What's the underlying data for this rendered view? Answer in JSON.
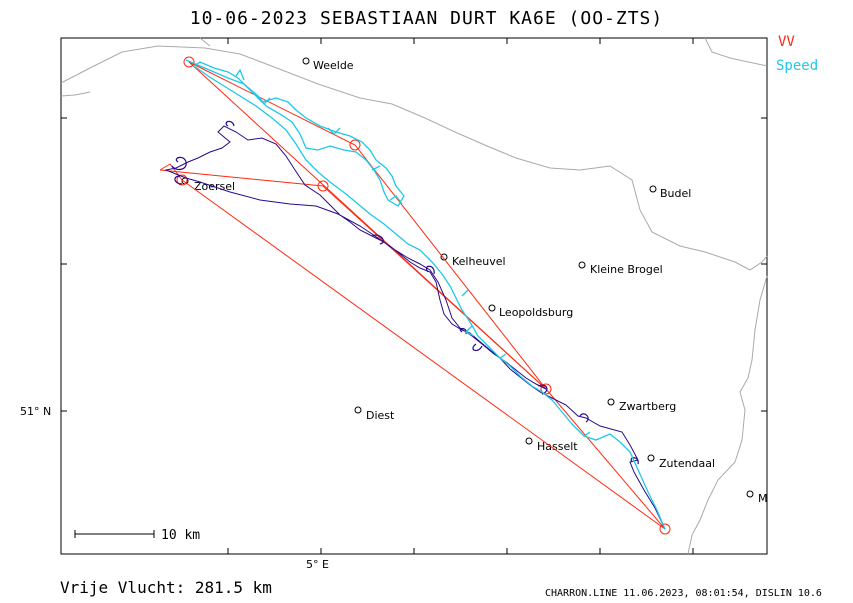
{
  "title": "10-06-2023   SEBASTIAAN DURT   KA6E (OO-ZTS)",
  "legend": {
    "vv": "VV",
    "speed": "Speed"
  },
  "axes": {
    "lat_label": "51° N",
    "lon_label": "5° E"
  },
  "scale": {
    "label": "10 km"
  },
  "places": [
    {
      "name": "Weelde",
      "id": "weelde"
    },
    {
      "name": "Zoersel",
      "id": "zoersel"
    },
    {
      "name": "Budel",
      "id": "budel"
    },
    {
      "name": "Kelheuvel",
      "id": "kelheuvel"
    },
    {
      "name": "Kleine Brogel",
      "id": "kleine-brogel"
    },
    {
      "name": "Leopoldsburg",
      "id": "leopoldsburg"
    },
    {
      "name": "Zwartberg",
      "id": "zwartberg"
    },
    {
      "name": "Diest",
      "id": "diest"
    },
    {
      "name": "Hasselt",
      "id": "hasselt"
    },
    {
      "name": "Zutendaal",
      "id": "zutendaal"
    },
    {
      "name": "M",
      "id": "m"
    }
  ],
  "colors": {
    "vv": "#ff2a10",
    "speed": "#1ec8e8",
    "track": "#2a0a8a",
    "border": "#aaaaaa"
  },
  "footer": {
    "distance": "Vrije Vlucht:  281.5 km",
    "software": "CHARRON.LINE 11.06.2023, 08:01:54, DISLIN 10.6"
  }
}
